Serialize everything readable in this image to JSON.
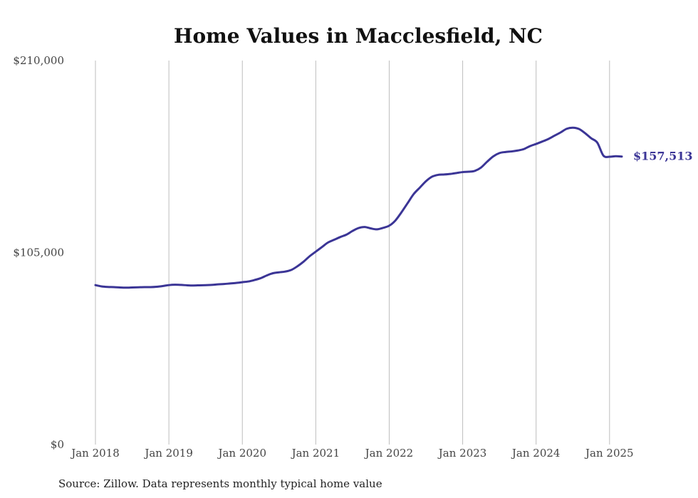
{
  "chart_data": {
    "type": "line",
    "title": "Home Values in Macclesfield, NC",
    "xlabel": "",
    "ylabel": "",
    "ylim": [
      0,
      210000
    ],
    "yticks": [
      0,
      105000,
      210000
    ],
    "ytick_labels": [
      "$0",
      "$105,000",
      "$210,000"
    ],
    "xlim": [
      "2018-01",
      "2025-03"
    ],
    "xticks": [
      "2018-01",
      "2019-01",
      "2020-01",
      "2021-01",
      "2022-01",
      "2023-01",
      "2024-01",
      "2025-01"
    ],
    "xtick_labels": [
      "Jan 2018",
      "Jan 2019",
      "Jan 2020",
      "Jan 2021",
      "Jan 2022",
      "Jan 2023",
      "Jan 2024",
      "Jan 2025"
    ],
    "grid": "vertical",
    "legend": "none",
    "series": [
      {
        "color": "#3b3596",
        "points": [
          [
            "2018-01",
            87200
          ],
          [
            "2018-02",
            86500
          ],
          [
            "2018-03",
            86200
          ],
          [
            "2018-04",
            86100
          ],
          [
            "2018-05",
            85900
          ],
          [
            "2018-06",
            85800
          ],
          [
            "2018-07",
            85900
          ],
          [
            "2018-08",
            86000
          ],
          [
            "2018-09",
            86100
          ],
          [
            "2018-10",
            86100
          ],
          [
            "2018-11",
            86300
          ],
          [
            "2018-12",
            86700
          ],
          [
            "2019-01",
            87200
          ],
          [
            "2019-02",
            87400
          ],
          [
            "2019-03",
            87300
          ],
          [
            "2019-04",
            87100
          ],
          [
            "2019-05",
            87000
          ],
          [
            "2019-06",
            87100
          ],
          [
            "2019-07",
            87200
          ],
          [
            "2019-08",
            87300
          ],
          [
            "2019-09",
            87600
          ],
          [
            "2019-10",
            87800
          ],
          [
            "2019-11",
            88100
          ],
          [
            "2019-12",
            88400
          ],
          [
            "2020-01",
            88800
          ],
          [
            "2020-02",
            89200
          ],
          [
            "2020-03",
            90000
          ],
          [
            "2020-04",
            91000
          ],
          [
            "2020-05",
            92500
          ],
          [
            "2020-06",
            93700
          ],
          [
            "2020-07",
            94200
          ],
          [
            "2020-08",
            94600
          ],
          [
            "2020-09",
            95500
          ],
          [
            "2020-10",
            97500
          ],
          [
            "2020-11",
            100000
          ],
          [
            "2020-12",
            103000
          ],
          [
            "2021-01",
            105500
          ],
          [
            "2021-02",
            108000
          ],
          [
            "2021-03",
            110500
          ],
          [
            "2021-04",
            112000
          ],
          [
            "2021-05",
            113500
          ],
          [
            "2021-06",
            114800
          ],
          [
            "2021-07",
            116800
          ],
          [
            "2021-08",
            118400
          ],
          [
            "2021-09",
            119000
          ],
          [
            "2021-10",
            118200
          ],
          [
            "2021-11",
            117700
          ],
          [
            "2021-12",
            118500
          ],
          [
            "2022-01",
            119700
          ],
          [
            "2022-02",
            122500
          ],
          [
            "2022-03",
            127000
          ],
          [
            "2022-04",
            132000
          ],
          [
            "2022-05",
            137000
          ],
          [
            "2022-06",
            140500
          ],
          [
            "2022-07",
            144000
          ],
          [
            "2022-08",
            146500
          ],
          [
            "2022-09",
            147500
          ],
          [
            "2022-10",
            147700
          ],
          [
            "2022-11",
            148000
          ],
          [
            "2022-12",
            148500
          ],
          [
            "2023-01",
            149000
          ],
          [
            "2023-02",
            149200
          ],
          [
            "2023-03",
            149700
          ],
          [
            "2023-04",
            151500
          ],
          [
            "2023-05",
            154700
          ],
          [
            "2023-06",
            157600
          ],
          [
            "2023-07",
            159400
          ],
          [
            "2023-08",
            160000
          ],
          [
            "2023-09",
            160300
          ],
          [
            "2023-10",
            160800
          ],
          [
            "2023-11",
            161600
          ],
          [
            "2023-12",
            163200
          ],
          [
            "2024-01",
            164400
          ],
          [
            "2024-02",
            165700
          ],
          [
            "2024-03",
            167100
          ],
          [
            "2024-04",
            168900
          ],
          [
            "2024-05",
            170700
          ],
          [
            "2024-06",
            172700
          ],
          [
            "2024-07",
            173300
          ],
          [
            "2024-08",
            172600
          ],
          [
            "2024-09",
            170300
          ],
          [
            "2024-10",
            167500
          ],
          [
            "2024-11",
            165100
          ],
          [
            "2024-12",
            158000
          ],
          [
            "2025-01",
            157400
          ],
          [
            "2025-02",
            157700
          ],
          [
            "2025-03",
            157513
          ]
        ],
        "end_label": "$157,513"
      }
    ]
  },
  "footer": {
    "source": "Source: Zillow. Data represents monthly typical home value"
  }
}
